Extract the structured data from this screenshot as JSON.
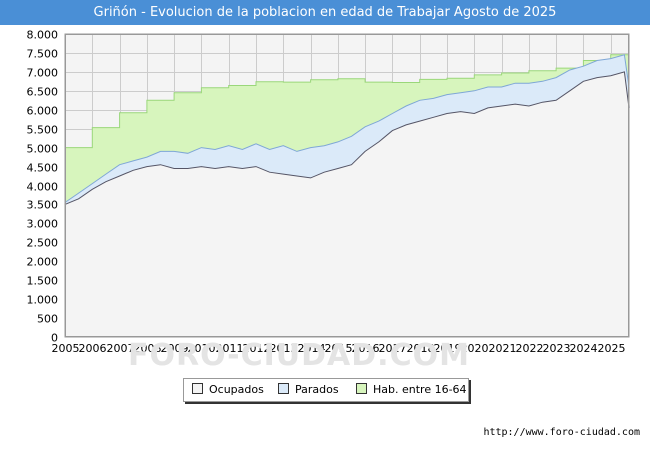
{
  "header": {
    "title": "Griñón - Evolucion de la poblacion en edad de Trabajar Agosto de 2025"
  },
  "footer": {
    "source": "http://www.foro-ciudad.com",
    "watermark": "FORO-CIUDAD.COM"
  },
  "colors": {
    "title_bar": "#4a8fd6",
    "plot_background": "#f4f4f4",
    "grid": "#cccccc",
    "ocupados_fill": "#f4f4f4",
    "ocupados_line": "#555566",
    "parados_fill": "#dbeaf9",
    "parados_line": "#7fa7d6",
    "hab_fill": "#d7f5bd",
    "hab_line": "#9ad77a"
  },
  "chart_data": {
    "type": "area",
    "title": "Griñón - Evolucion de la poblacion en edad de Trabajar Agosto de 2025",
    "xlim": [
      2005,
      2025.67
    ],
    "ylim": [
      0,
      8000
    ],
    "y_ticks": [
      0,
      500,
      1000,
      1500,
      2000,
      2500,
      3000,
      3500,
      4000,
      4500,
      5000,
      5500,
      6000,
      6500,
      7000,
      7500,
      8000
    ],
    "y_tick_labels": [
      "0",
      "500",
      "1.000",
      "1.500",
      "2.000",
      "2.500",
      "3.000",
      "3.500",
      "4.000",
      "4.500",
      "5.000",
      "5.500",
      "6.000",
      "6.500",
      "7.000",
      "7.500",
      "8.000"
    ],
    "x_ticks": [
      2005,
      2006,
      2007,
      2008,
      2009,
      2010,
      2011,
      2012,
      2013,
      2014,
      2015,
      2016,
      2017,
      2018,
      2019,
      2020,
      2021,
      2022,
      2023,
      2024,
      2025
    ],
    "x_tick_labels": [
      "2005",
      "2006",
      "2007",
      "2008",
      "2009",
      "2010",
      "2011",
      "2012",
      "2013",
      "2014",
      "2015",
      "2016",
      "2017",
      "2018",
      "2019",
      "2020",
      "2021",
      "2022",
      "2023",
      "2024",
      "2025"
    ],
    "grid": true,
    "legend_position": "bottom-center",
    "legend": [
      "Ocupados",
      "Parados",
      "Hab. entre 16-64"
    ],
    "series": [
      {
        "name": "Hab. entre 16-64",
        "step": true,
        "x": [
          2005,
          2006,
          2007,
          2008,
          2009,
          2010,
          2011,
          2012,
          2013,
          2014,
          2015,
          2016,
          2017,
          2018,
          2019,
          2020,
          2021,
          2022,
          2023,
          2024,
          2025
        ],
        "values": [
          5000,
          5530,
          5920,
          6250,
          6450,
          6580,
          6640,
          6740,
          6730,
          6790,
          6820,
          6730,
          6720,
          6800,
          6830,
          6920,
          6970,
          7030,
          7100,
          7300,
          7450
        ]
      },
      {
        "name": "Parados",
        "x": [
          2005,
          2005.5,
          2006,
          2006.5,
          2007,
          2007.5,
          2008,
          2008.5,
          2009,
          2009.5,
          2010,
          2010.5,
          2011,
          2011.5,
          2012,
          2012.5,
          2013,
          2013.5,
          2014,
          2014.5,
          2015,
          2015.5,
          2016,
          2016.5,
          2017,
          2017.5,
          2018,
          2018.5,
          2019,
          2019.5,
          2020,
          2020.5,
          2021,
          2021.5,
          2022,
          2022.5,
          2023,
          2023.5,
          2024,
          2024.5,
          2025,
          2025.5,
          2025.67
        ],
        "values": [
          3550,
          3800,
          4050,
          4300,
          4550,
          4650,
          4750,
          4900,
          4900,
          4850,
          5000,
          4950,
          5050,
          4950,
          5100,
          4950,
          5050,
          4900,
          5000,
          5050,
          5150,
          5300,
          5550,
          5700,
          5900,
          6100,
          6250,
          6300,
          6400,
          6450,
          6500,
          6600,
          6600,
          6700,
          6700,
          6750,
          6850,
          7050,
          7150,
          7300,
          7350,
          7450,
          6600
        ]
      },
      {
        "name": "Ocupados",
        "x": [
          2005,
          2005.5,
          2006,
          2006.5,
          2007,
          2007.5,
          2008,
          2008.5,
          2009,
          2009.5,
          2010,
          2010.5,
          2011,
          2011.5,
          2012,
          2012.5,
          2013,
          2013.5,
          2014,
          2014.5,
          2015,
          2015.5,
          2016,
          2016.5,
          2017,
          2017.5,
          2018,
          2018.5,
          2019,
          2019.5,
          2020,
          2020.5,
          2021,
          2021.5,
          2022,
          2022.5,
          2023,
          2023.5,
          2024,
          2024.5,
          2025,
          2025.5,
          2025.67
        ],
        "values": [
          3500,
          3650,
          3900,
          4100,
          4250,
          4400,
          4500,
          4550,
          4450,
          4450,
          4500,
          4450,
          4500,
          4450,
          4500,
          4350,
          4300,
          4250,
          4200,
          4350,
          4450,
          4550,
          4900,
          5150,
          5450,
          5600,
          5700,
          5800,
          5900,
          5950,
          5900,
          6050,
          6100,
          6150,
          6100,
          6200,
          6250,
          6500,
          6750,
          6850,
          6900,
          7000,
          6050
        ]
      }
    ]
  }
}
